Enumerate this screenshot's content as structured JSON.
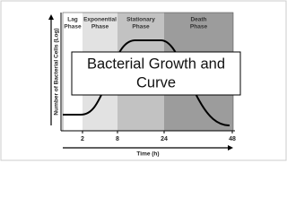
{
  "diagram": {
    "phases": [
      {
        "lines": [
          "Lag",
          "Phase"
        ]
      },
      {
        "lines": [
          "Exponential",
          "Phase"
        ]
      },
      {
        "lines": [
          "Stationary",
          "Phase"
        ]
      },
      {
        "lines": [
          "Death",
          "Phase"
        ]
      }
    ],
    "y_axis_label": "Number of Bacterial Cells (Log)",
    "x_axis_label": "Time (h)",
    "x_ticks": [
      "2",
      "8",
      "24",
      "48"
    ],
    "title_lines": [
      "Bacterial Growth and",
      "Curve"
    ]
  }
}
